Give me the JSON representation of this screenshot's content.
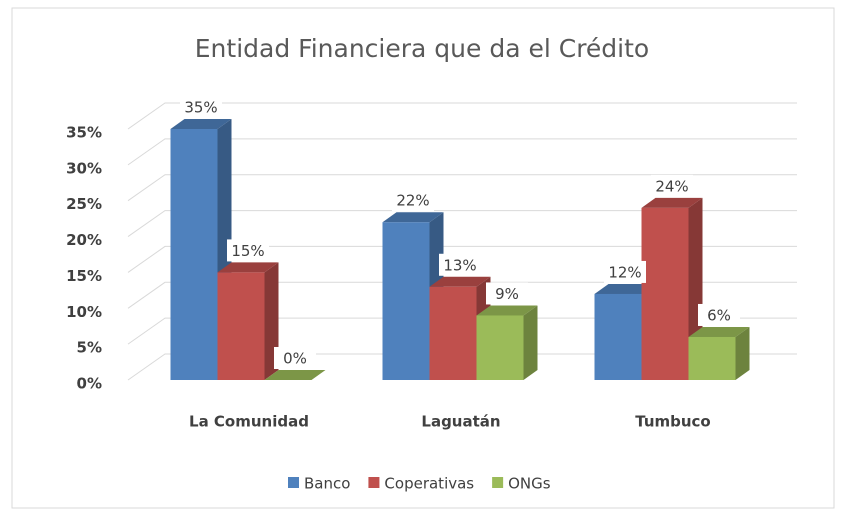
{
  "chart_data": {
    "type": "bar3d",
    "title": "Entidad Financiera que da el Crédito",
    "categories": [
      "La Comunidad",
      "Laguatán",
      "Tumbuco"
    ],
    "series": [
      {
        "name": "Banco",
        "color": "#4f81bd",
        "values": [
          35,
          22,
          12
        ],
        "value_labels": [
          "35%",
          "22%",
          "12%"
        ]
      },
      {
        "name": "Coperativas",
        "color": "#c0504d",
        "values": [
          15,
          13,
          24
        ],
        "value_labels": [
          "15%",
          "13%",
          "24%"
        ]
      },
      {
        "name": "ONGs",
        "color": "#9bbb59",
        "values": [
          0,
          9,
          6
        ],
        "value_labels": [
          "0%",
          "9%",
          "6%"
        ]
      }
    ],
    "ylim": [
      0,
      35
    ],
    "yticks": [
      {
        "value": 0,
        "label": "0%"
      },
      {
        "value": 5,
        "label": "5%"
      },
      {
        "value": 10,
        "label": "10%"
      },
      {
        "value": 15,
        "label": "15%"
      },
      {
        "value": 20,
        "label": "20%"
      },
      {
        "value": 25,
        "label": "25%"
      },
      {
        "value": 30,
        "label": "30%"
      },
      {
        "value": 35,
        "label": "35%"
      }
    ],
    "grid": true,
    "legend": "bottom"
  }
}
